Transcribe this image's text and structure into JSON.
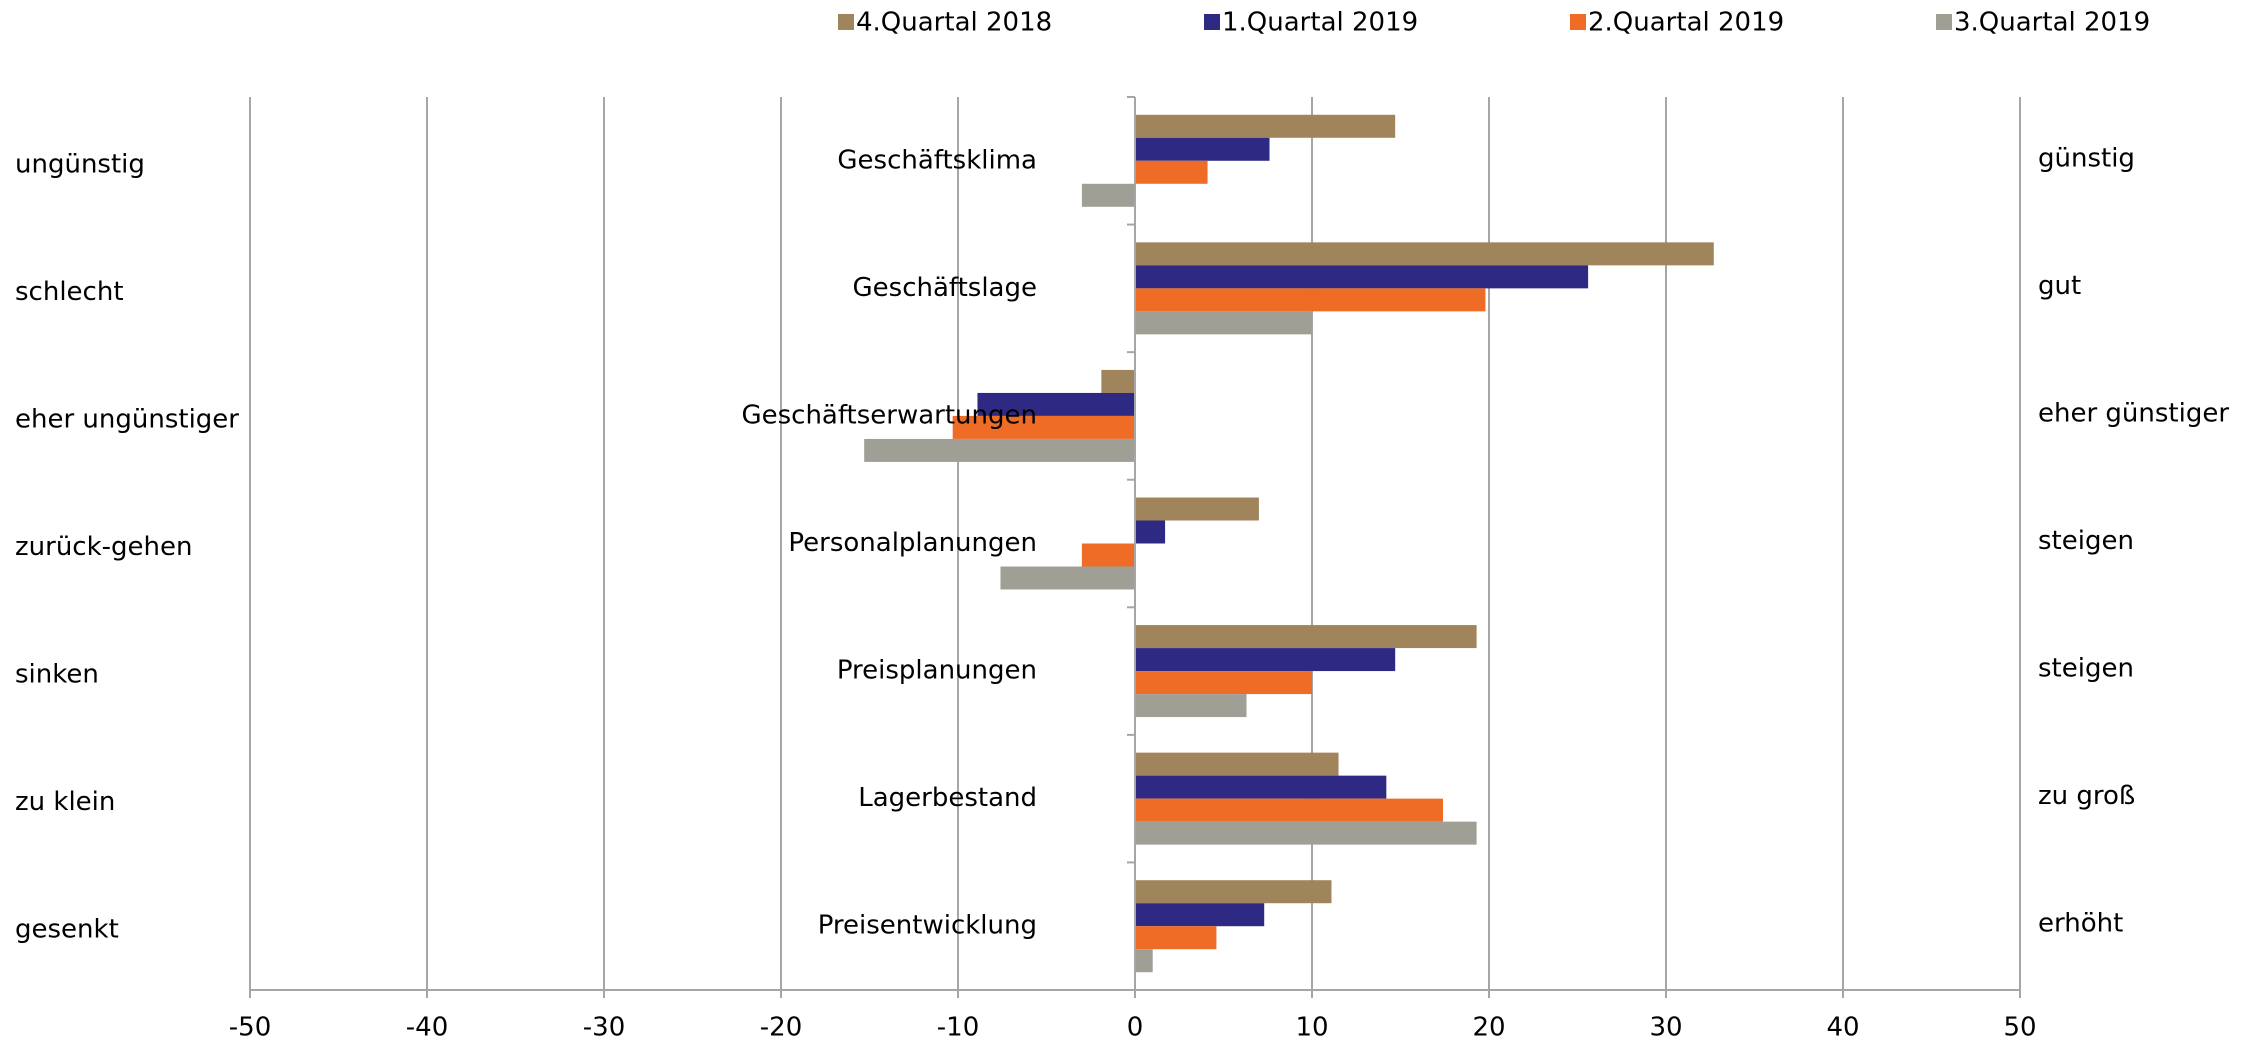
{
  "chart_data": {
    "type": "hbar",
    "categories": [
      "Geschäftsklima",
      "Geschäftslage",
      "Geschäftserwartungen",
      "Personalplanungen",
      "Preisplanungen",
      "Lagerbestand",
      "Preisentwicklung"
    ],
    "left_labels": [
      "ungünstig",
      "schlecht",
      "eher ungünstiger",
      "zurück-gehen",
      "sinken",
      "zu klein",
      "gesenkt"
    ],
    "right_labels": [
      "günstig",
      "gut",
      "eher günstiger",
      "steigen",
      "steigen",
      "zu groß",
      "erhöht"
    ],
    "series": [
      {
        "name": "4.Quartal 2018",
        "color": "#a0845c",
        "values": [
          14.7,
          32.7,
          -1.9,
          7.0,
          19.3,
          11.5,
          11.1
        ]
      },
      {
        "name": "1.Quartal 2019",
        "color": "#2e2a84",
        "values": [
          7.6,
          25.6,
          -8.9,
          1.7,
          14.7,
          14.2,
          7.3
        ]
      },
      {
        "name": "2.Quartal 2019",
        "color": "#ee6c25",
        "values": [
          4.1,
          19.8,
          -10.3,
          -3.0,
          10.0,
          17.4,
          4.6
        ]
      },
      {
        "name": "3.Quartal 2019",
        "color": "#a09f96",
        "values": [
          -3.0,
          10.0,
          -15.3,
          -7.6,
          6.3,
          19.3,
          1.0
        ]
      }
    ],
    "xlim": [
      -50,
      50
    ],
    "xticks": [
      -50,
      -40,
      -30,
      -20,
      -10,
      0,
      10,
      20,
      30,
      40,
      50
    ],
    "grid": true
  }
}
